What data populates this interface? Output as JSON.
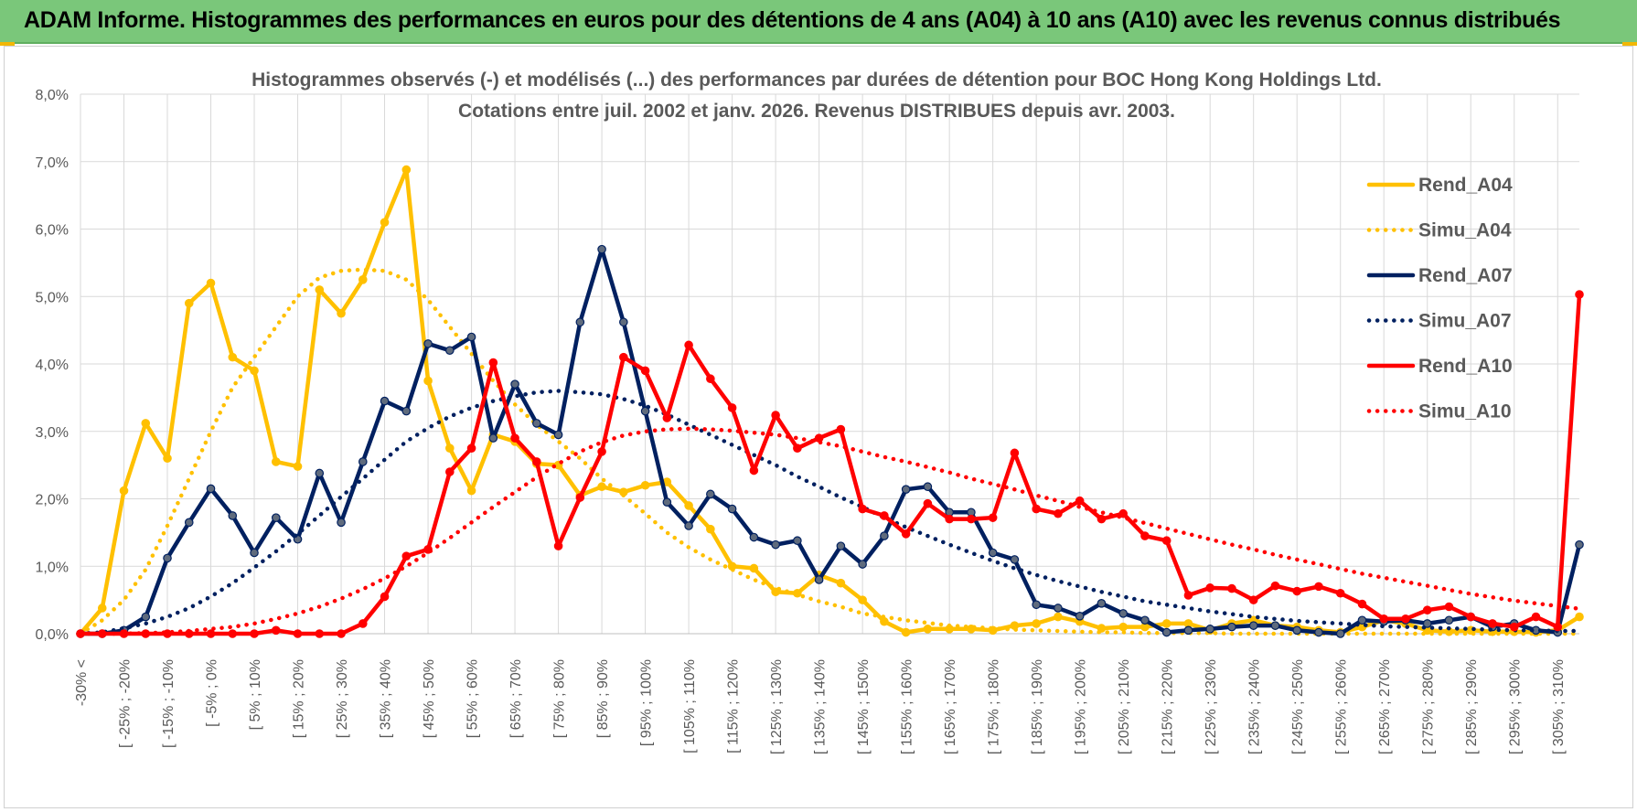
{
  "banner": {
    "title": "ADAM Informe. Histogrammes des performances en euros pour des détentions de 4 ans (A04) à 10 ans (A10) avec les revenus connus distribués"
  },
  "chart_data": {
    "type": "line",
    "title_lines": [
      "Histogrammes observés (-) et modélisés (...) des performances par durées de détention pour BOC Hong Kong Holdings Ltd.",
      "Cotations entre juil. 2002 et janv. 2026. Revenus DISTRIBUES depuis avr. 2003."
    ],
    "ylim": [
      0,
      8
    ],
    "yticks": [
      "0,0%",
      "1,0%",
      "2,0%",
      "3,0%",
      "4,0%",
      "5,0%",
      "6,0%",
      "7,0%",
      "8,0%"
    ],
    "grid": true,
    "legend_position": "top-right",
    "x_count": 70,
    "xtick_labels": [
      "-30% <",
      "[ -25% ; -20%",
      "[ -15% ; -10%",
      "[ -5% ; 0%",
      "[ 5% ; 10%",
      "[ 15% ; 20%",
      "[ 25% ; 30%",
      "[ 35% ; 40%",
      "[ 45% ; 50%",
      "[ 55% ; 60%",
      "[ 65% ; 70%",
      "[ 75% ; 80%",
      "[ 85% ; 90%",
      "[ 95% ; 100%",
      "[ 105% ; 110%",
      "[ 115% ; 120%",
      "[ 125% ; 130%",
      "[ 135% ; 140%",
      "[ 145% ; 150%",
      "[ 155% ; 160%",
      "[ 165% ; 170%",
      "[ 175% ; 180%",
      "[ 185% ; 190%",
      "[ 195% ; 200%",
      "[ 205% ; 210%",
      "[ 215% ; 220%",
      "[ 225% ; 230%",
      "[ 235% ; 240%",
      "[ 245% ; 250%",
      "[ 255% ; 260%",
      "[ 265% ; 270%",
      "[ 275% ; 280%",
      "[ 285% ; 290%",
      "[ 295% ; 300%",
      "[ 305% ; 310%"
    ],
    "series": [
      {
        "name": "Rend_A04",
        "color": "#ffc000",
        "style": "solid",
        "markers": true,
        "values": [
          0.0,
          0.38,
          2.12,
          3.12,
          2.6,
          4.9,
          5.2,
          4.1,
          3.9,
          2.55,
          2.48,
          5.1,
          4.75,
          5.25,
          6.1,
          6.88,
          3.75,
          2.75,
          2.12,
          2.95,
          2.85,
          2.52,
          2.5,
          2.05,
          2.18,
          2.1,
          2.2,
          2.25,
          1.9,
          1.55,
          1.0,
          0.97,
          0.62,
          0.6,
          0.87,
          0.75,
          0.5,
          0.18,
          0.02,
          0.07,
          0.07,
          0.07,
          0.05,
          0.12,
          0.15,
          0.25,
          0.18,
          0.08,
          0.1,
          0.1,
          0.15,
          0.15,
          0.05,
          0.15,
          0.2,
          0.12,
          0.1,
          0.05,
          0.02,
          0.1,
          0.2,
          0.15,
          0.05,
          0.03,
          0.05,
          0.03,
          0.03,
          0.02,
          0.05,
          0.25
        ]
      },
      {
        "name": "Simu_A04",
        "color": "#ffc000",
        "style": "dotted",
        "markers": false,
        "values": [
          0.0,
          0.2,
          0.5,
          0.95,
          1.6,
          2.3,
          3.0,
          3.65,
          4.1,
          4.55,
          5.0,
          5.28,
          5.38,
          5.4,
          5.38,
          5.25,
          4.95,
          4.55,
          4.15,
          3.75,
          3.4,
          3.1,
          2.85,
          2.6,
          2.3,
          2.05,
          1.78,
          1.5,
          1.28,
          1.1,
          0.95,
          0.8,
          0.68,
          0.58,
          0.48,
          0.4,
          0.3,
          0.25,
          0.2,
          0.16,
          0.12,
          0.1,
          0.08,
          0.06,
          0.05,
          0.04,
          0.03,
          0.02,
          0.02,
          0.01,
          0.01,
          0.01,
          0.01,
          0.0,
          0.0,
          0.0,
          0.0,
          0.0,
          0.0,
          0.0,
          0.0,
          0.0,
          0.0,
          0.0,
          0.0,
          0.0,
          0.0,
          0.0,
          0.0,
          0.0
        ]
      },
      {
        "name": "Rend_A07",
        "color": "#002060",
        "style": "solid",
        "markers": true,
        "values": [
          0.0,
          0.0,
          0.05,
          0.25,
          1.12,
          1.65,
          2.15,
          1.75,
          1.2,
          1.72,
          1.4,
          2.38,
          1.65,
          2.55,
          3.45,
          3.3,
          4.3,
          4.2,
          4.4,
          2.9,
          3.7,
          3.12,
          2.95,
          4.62,
          5.7,
          4.62,
          3.3,
          1.95,
          1.6,
          2.07,
          1.85,
          1.43,
          1.32,
          1.38,
          0.8,
          1.3,
          1.03,
          1.45,
          2.14,
          2.18,
          1.8,
          1.8,
          1.2,
          1.1,
          0.43,
          0.38,
          0.26,
          0.45,
          0.3,
          0.2,
          0.02,
          0.05,
          0.07,
          0.1,
          0.12,
          0.12,
          0.05,
          0.02,
          0.0,
          0.2,
          0.18,
          0.2,
          0.15,
          0.2,
          0.25,
          0.1,
          0.15,
          0.05,
          0.02,
          1.32
        ]
      },
      {
        "name": "Simu_A07",
        "color": "#002060",
        "style": "dotted",
        "markers": false,
        "values": [
          0.0,
          0.02,
          0.08,
          0.15,
          0.25,
          0.38,
          0.55,
          0.75,
          0.98,
          1.22,
          1.48,
          1.75,
          2.03,
          2.3,
          2.58,
          2.85,
          3.05,
          3.22,
          3.35,
          3.45,
          3.52,
          3.58,
          3.6,
          3.58,
          3.55,
          3.48,
          3.38,
          3.25,
          3.1,
          2.95,
          2.8,
          2.65,
          2.5,
          2.33,
          2.18,
          2.02,
          1.88,
          1.72,
          1.58,
          1.45,
          1.32,
          1.2,
          1.08,
          0.97,
          0.87,
          0.78,
          0.7,
          0.62,
          0.55,
          0.48,
          0.43,
          0.38,
          0.33,
          0.29,
          0.25,
          0.22,
          0.19,
          0.17,
          0.15,
          0.13,
          0.11,
          0.1,
          0.09,
          0.08,
          0.07,
          0.06,
          0.05,
          0.05,
          0.04,
          0.04
        ]
      },
      {
        "name": "Rend_A10",
        "color": "#ff0000",
        "style": "solid",
        "markers": true,
        "values": [
          0.0,
          0.0,
          0.0,
          0.0,
          0.0,
          0.0,
          0.0,
          0.0,
          0.0,
          0.05,
          0.0,
          0.0,
          0.0,
          0.15,
          0.55,
          1.15,
          1.25,
          2.4,
          2.75,
          4.02,
          2.9,
          2.55,
          1.3,
          2.02,
          2.7,
          4.1,
          3.9,
          3.2,
          4.28,
          3.78,
          3.35,
          2.42,
          3.24,
          2.75,
          2.9,
          3.03,
          1.85,
          1.75,
          1.48,
          1.93,
          1.7,
          1.7,
          1.72,
          2.68,
          1.85,
          1.78,
          1.97,
          1.7,
          1.78,
          1.45,
          1.38,
          0.57,
          0.68,
          0.67,
          0.5,
          0.71,
          0.63,
          0.7,
          0.6,
          0.44,
          0.22,
          0.22,
          0.35,
          0.4,
          0.25,
          0.15,
          0.1,
          0.25,
          0.1,
          5.03
        ]
      },
      {
        "name": "Simu_A10",
        "color": "#ff0000",
        "style": "dotted",
        "markers": false,
        "values": [
          0.0,
          0.0,
          0.0,
          0.01,
          0.02,
          0.04,
          0.07,
          0.1,
          0.15,
          0.22,
          0.3,
          0.4,
          0.52,
          0.66,
          0.82,
          1.0,
          1.2,
          1.42,
          1.65,
          1.88,
          2.1,
          2.32,
          2.52,
          2.7,
          2.84,
          2.94,
          3.0,
          3.03,
          3.04,
          3.03,
          3.01,
          2.98,
          2.95,
          2.9,
          2.84,
          2.78,
          2.7,
          2.62,
          2.55,
          2.47,
          2.39,
          2.3,
          2.22,
          2.14,
          2.05,
          1.97,
          1.88,
          1.8,
          1.72,
          1.64,
          1.56,
          1.48,
          1.4,
          1.32,
          1.25,
          1.17,
          1.1,
          1.03,
          0.96,
          0.89,
          0.83,
          0.77,
          0.71,
          0.65,
          0.59,
          0.54,
          0.49,
          0.45,
          0.41,
          0.37
        ]
      }
    ]
  }
}
